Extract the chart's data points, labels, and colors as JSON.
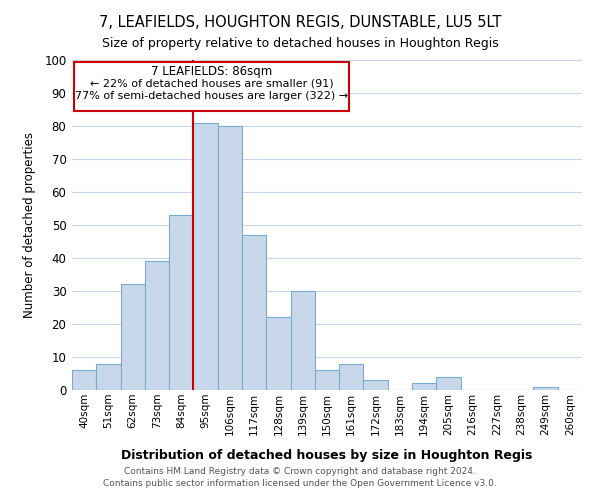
{
  "title": "7, LEAFIELDS, HOUGHTON REGIS, DUNSTABLE, LU5 5LT",
  "subtitle": "Size of property relative to detached houses in Houghton Regis",
  "xlabel": "Distribution of detached houses by size in Houghton Regis",
  "ylabel": "Number of detached properties",
  "bar_color": "#c8d8ea",
  "bar_edge_color": "#7baad0",
  "categories": [
    "40sqm",
    "51sqm",
    "62sqm",
    "73sqm",
    "84sqm",
    "95sqm",
    "106sqm",
    "117sqm",
    "128sqm",
    "139sqm",
    "150sqm",
    "161sqm",
    "172sqm",
    "183sqm",
    "194sqm",
    "205sqm",
    "216sqm",
    "227sqm",
    "238sqm",
    "249sqm",
    "260sqm"
  ],
  "values": [
    6,
    8,
    32,
    39,
    53,
    81,
    80,
    47,
    22,
    30,
    6,
    8,
    3,
    0,
    2,
    4,
    0,
    0,
    0,
    1,
    0
  ],
  "ylim": [
    0,
    100
  ],
  "yticks": [
    0,
    10,
    20,
    30,
    40,
    50,
    60,
    70,
    80,
    90,
    100
  ],
  "vline_x": 4.5,
  "vline_color": "#cc0000",
  "annotation_title": "7 LEAFIELDS: 86sqm",
  "annotation_line1": "← 22% of detached houses are smaller (91)",
  "annotation_line2": "77% of semi-detached houses are larger (322) →",
  "annotation_box_color": "#cc0000",
  "footer1": "Contains HM Land Registry data © Crown copyright and database right 2024.",
  "footer2": "Contains public sector information licensed under the Open Government Licence v3.0.",
  "background_color": "#ffffff",
  "grid_color": "#c8d8ea",
  "title_fontsize": 10.5,
  "subtitle_fontsize": 9
}
